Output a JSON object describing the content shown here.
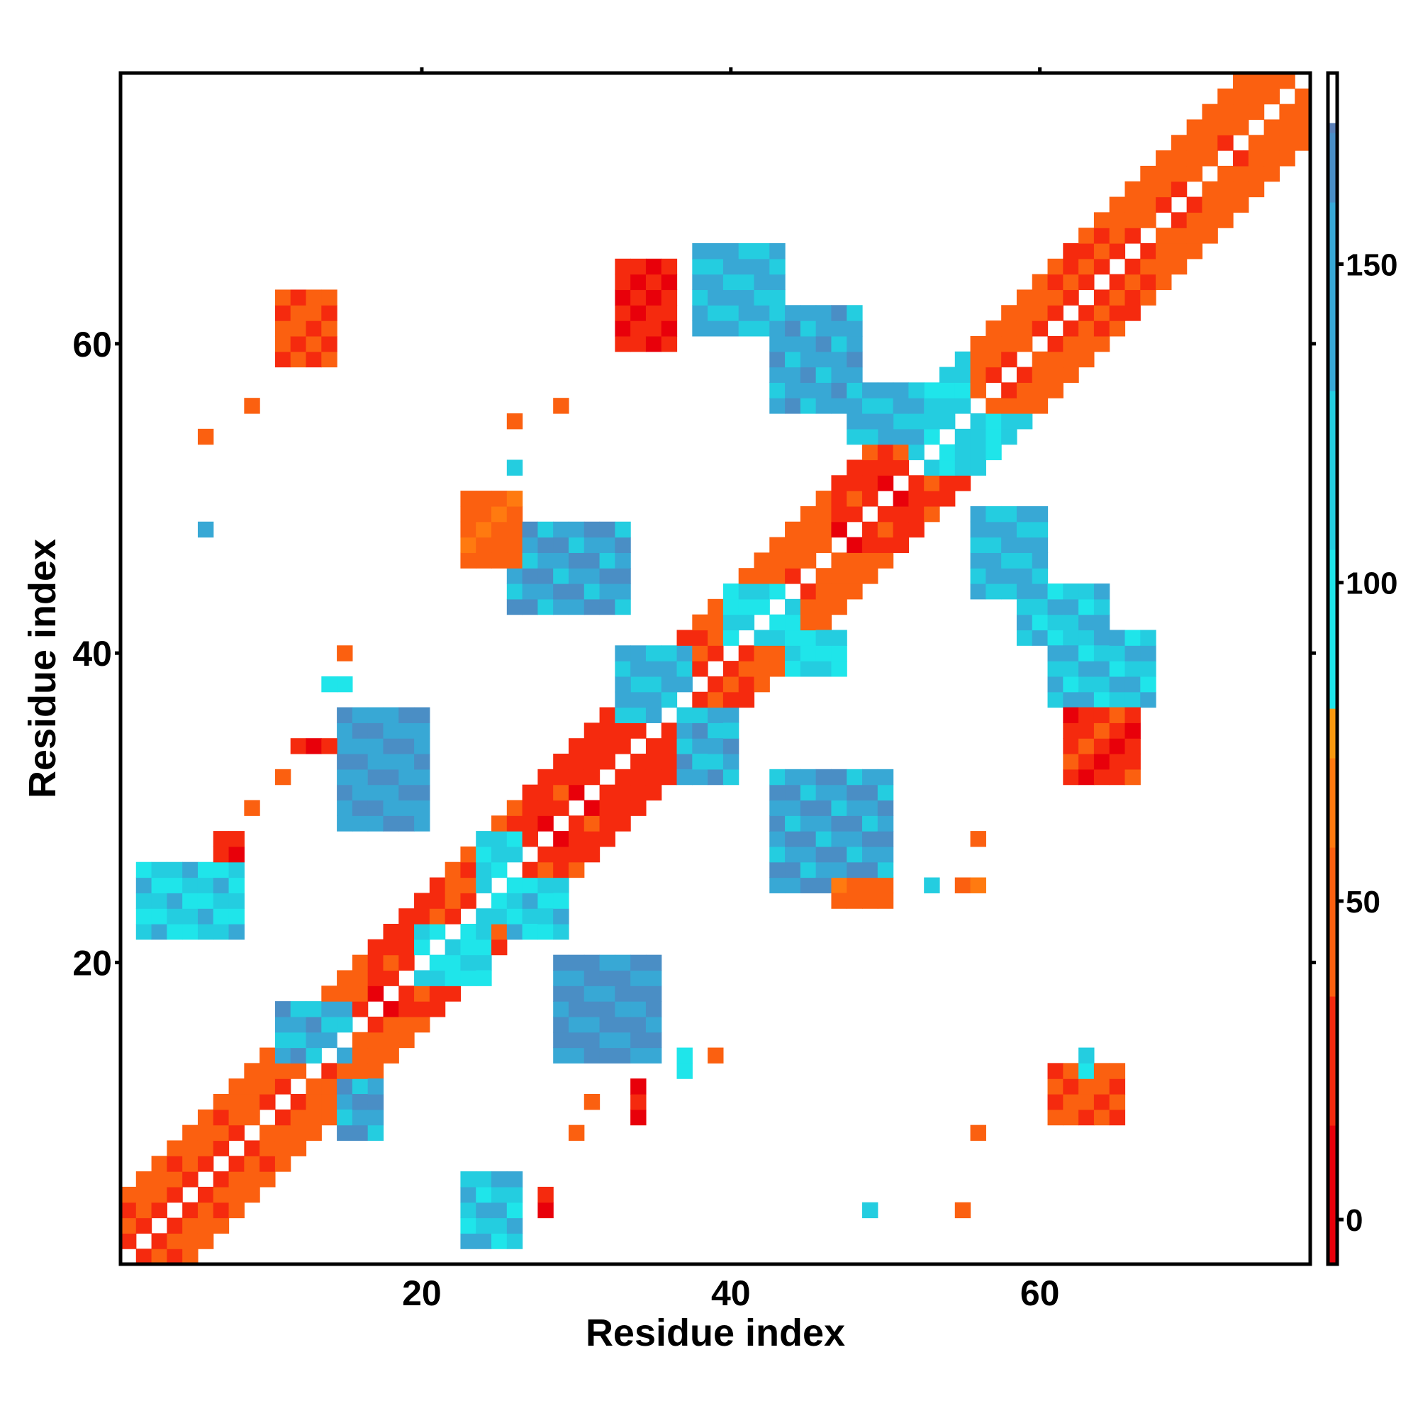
{
  "chart_data": {
    "type": "heatmap",
    "title": "",
    "xlabel": "Residue index",
    "ylabel": "Residue index",
    "xlim": [
      1,
      77
    ],
    "ylim": [
      1,
      77
    ],
    "x_ticks": [
      20,
      40,
      60
    ],
    "y_ticks": [
      20,
      40,
      60
    ],
    "x_tick_labels": [
      "20",
      "40",
      "60"
    ],
    "y_tick_labels": [
      "20",
      "40",
      "60"
    ],
    "colorbar": {
      "ticks": [
        0,
        50,
        100,
        150
      ],
      "tick_labels": [
        "0",
        "50",
        "100",
        "150"
      ],
      "range": [
        -7,
        180
      ],
      "stops": [
        {
          "value": -7,
          "color": "#e8000a"
        },
        {
          "value": 15,
          "color": "#f52a0e"
        },
        {
          "value": 35,
          "color": "#fb6010"
        },
        {
          "value": 58,
          "color": "#ff7a10"
        },
        {
          "value": 72,
          "color": "#f89910"
        },
        {
          "value": 80,
          "color": "#1fe5ea"
        },
        {
          "value": 105,
          "color": "#24cde0"
        },
        {
          "value": 130,
          "color": "#38a8d5"
        },
        {
          "value": 160,
          "color": "#4a8ec5"
        },
        {
          "value": 170,
          "color": "#5b80b8"
        },
        {
          "value": 172,
          "color": "#ffffff"
        },
        {
          "value": 180,
          "color": "#ffffff"
        }
      ]
    },
    "band_pattern": [
      {
        "offset": 1,
        "value": 20
      },
      {
        "offset": 2,
        "value": 50
      },
      {
        "offset": 3,
        "value": 35
      },
      {
        "offset": 4,
        "value": 45
      }
    ],
    "diagonal_stretches": [
      {
        "from": 1,
        "to": 9,
        "value": 40
      },
      {
        "from": 9,
        "to": 16,
        "value": 45
      },
      {
        "from": 16,
        "to": 21,
        "value": 15
      },
      {
        "from": 21,
        "to": 26,
        "value": 40
      },
      {
        "from": 26,
        "to": 32,
        "value": 12
      },
      {
        "from": 32,
        "to": 38,
        "value": 20
      },
      {
        "from": 38,
        "to": 42,
        "value": 45
      },
      {
        "from": 42,
        "to": 46,
        "value": 55
      },
      {
        "from": 46,
        "to": 51,
        "value": 15
      },
      {
        "from": 51,
        "to": 55,
        "value": 95
      },
      {
        "from": 55,
        "to": 59,
        "value": 45
      },
      {
        "from": 59,
        "to": 64,
        "value": 30
      },
      {
        "from": 64,
        "to": 70,
        "value": 45
      },
      {
        "from": 70,
        "to": 77,
        "value": 55
      }
    ],
    "patches": [
      {
        "x": [
          33,
          37
        ],
        "y": [
          36,
          40
        ],
        "value": 130
      },
      {
        "x": [
          37,
          40
        ],
        "y": [
          32,
          36
        ],
        "value": 140
      },
      {
        "x": [
          15,
          20
        ],
        "y": [
          29,
          36
        ],
        "value": 155
      },
      {
        "x": [
          29,
          35
        ],
        "y": [
          14,
          20
        ],
        "value": 160
      },
      {
        "x": [
          11,
          15
        ],
        "y": [
          14,
          17
        ],
        "value": 140
      },
      {
        "x": [
          15,
          17
        ],
        "y": [
          9,
          12
        ],
        "value": 150
      },
      {
        "x": [
          23,
          26
        ],
        "y": [
          2,
          6
        ],
        "value": 125
      },
      {
        "x": [
          2,
          8
        ],
        "y": [
          22,
          26
        ],
        "value": 115
      },
      {
        "x": [
          24,
          26
        ],
        "y": [
          23,
          28
        ],
        "value": 105
      },
      {
        "x": [
          26,
          29
        ],
        "y": [
          22,
          25
        ],
        "value": 110
      },
      {
        "x": [
          20,
          24
        ],
        "y": [
          19,
          22
        ],
        "value": 100
      },
      {
        "x": [
          26,
          33
        ],
        "y": [
          43,
          48
        ],
        "value": 150
      },
      {
        "x": [
          38,
          43
        ],
        "y": [
          61,
          66
        ],
        "value": 130
      },
      {
        "x": [
          43,
          48
        ],
        "y": [
          56,
          62
        ],
        "value": 145
      },
      {
        "x": [
          48,
          52
        ],
        "y": [
          54,
          57
        ],
        "value": 130
      },
      {
        "x": [
          56,
          60
        ],
        "y": [
          44,
          49
        ],
        "value": 135
      },
      {
        "x": [
          59,
          64
        ],
        "y": [
          41,
          44
        ],
        "value": 125
      },
      {
        "x": [
          61,
          67
        ],
        "y": [
          37,
          41
        ],
        "value": 120
      },
      {
        "x": [
          43,
          50
        ],
        "y": [
          25,
          32
        ],
        "value": 150
      },
      {
        "x": [
          40,
          44
        ],
        "y": [
          41,
          44
        ],
        "value": 95
      },
      {
        "x": [
          44,
          47
        ],
        "y": [
          39,
          41
        ],
        "value": 95
      },
      {
        "x": [
          61,
          65
        ],
        "y": [
          10,
          13
        ],
        "value": 40
      },
      {
        "x": [
          62,
          66
        ],
        "y": [
          32,
          36
        ],
        "value": 25
      },
      {
        "x": [
          47,
          50
        ],
        "y": [
          24,
          25
        ],
        "value": 50
      },
      {
        "x": [
          11,
          14
        ],
        "y": [
          59,
          63
        ],
        "value": 40
      },
      {
        "x": [
          33,
          36
        ],
        "y": [
          60,
          65
        ],
        "value": 20
      },
      {
        "x": [
          23,
          26
        ],
        "y": [
          46,
          50
        ],
        "value": 50
      },
      {
        "x": [
          7,
          8
        ],
        "y": [
          27,
          28
        ],
        "value": 20
      },
      {
        "x": [
          12,
          14
        ],
        "y": [
          34,
          34
        ],
        "value": 20
      },
      {
        "x": [
          34,
          34
        ],
        "y": [
          10,
          12
        ],
        "value": 15
      },
      {
        "x": [
          28,
          28
        ],
        "y": [
          4,
          5
        ],
        "value": 10
      },
      {
        "x": [
          55,
          56
        ],
        "y": [
          25,
          25
        ],
        "value": 45
      }
    ],
    "points": [
      {
        "x": 9,
        "y": 56,
        "value": 45
      },
      {
        "x": 6,
        "y": 54,
        "value": 45
      },
      {
        "x": 26,
        "y": 55,
        "value": 45
      },
      {
        "x": 29,
        "y": 56,
        "value": 50
      },
      {
        "x": 6,
        "y": 48,
        "value": 130
      },
      {
        "x": 26,
        "y": 52,
        "value": 110
      },
      {
        "x": 15,
        "y": 40,
        "value": 55
      },
      {
        "x": 14,
        "y": 38,
        "value": 90
      },
      {
        "x": 15,
        "y": 38,
        "value": 90
      },
      {
        "x": 11,
        "y": 32,
        "value": 45
      },
      {
        "x": 9,
        "y": 30,
        "value": 45
      },
      {
        "x": 37,
        "y": 14,
        "value": 95
      },
      {
        "x": 37,
        "y": 13,
        "value": 95
      },
      {
        "x": 39,
        "y": 14,
        "value": 55
      },
      {
        "x": 31,
        "y": 11,
        "value": 40
      },
      {
        "x": 30,
        "y": 9,
        "value": 40
      },
      {
        "x": 49,
        "y": 4,
        "value": 115
      },
      {
        "x": 55,
        "y": 4,
        "value": 50
      },
      {
        "x": 56,
        "y": 9,
        "value": 45
      },
      {
        "x": 56,
        "y": 28,
        "value": 45
      },
      {
        "x": 53,
        "y": 25,
        "value": 115
      },
      {
        "x": 63,
        "y": 14,
        "value": 105
      },
      {
        "x": 63,
        "y": 13,
        "value": 95
      }
    ]
  }
}
